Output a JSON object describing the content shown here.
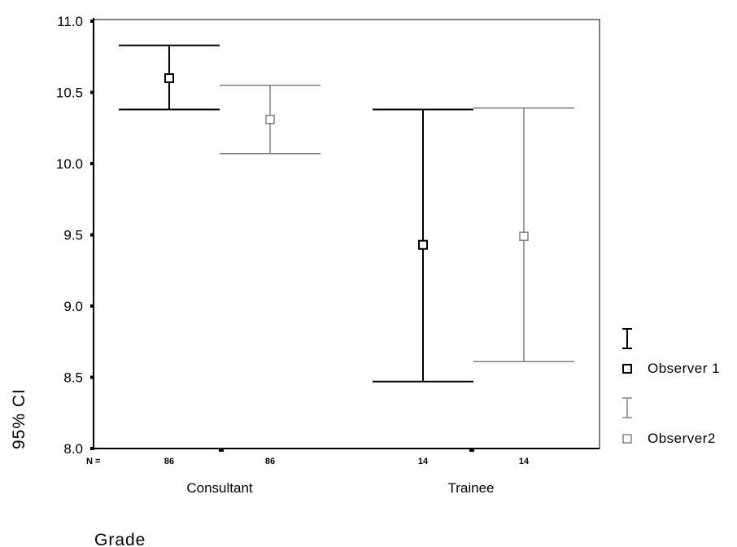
{
  "chart_data": {
    "type": "errorbar",
    "ylabel": "95% CI",
    "xlabel": "Grade",
    "ylim": [
      8.0,
      11.0
    ],
    "yticks": [
      "11.0",
      "10.5",
      "10.0",
      "9.5",
      "9.0",
      "8.5",
      "8.0"
    ],
    "n_prefix": "N =",
    "categories": [
      "Consultant",
      "Trainee"
    ],
    "series": [
      {
        "name": "Observer 1",
        "color": "#000000",
        "n": [
          "86",
          "14"
        ],
        "mean": [
          10.6,
          9.43
        ],
        "lower": [
          10.38,
          8.47
        ],
        "upper": [
          10.83,
          10.38
        ]
      },
      {
        "name": "Observer2",
        "color": "#808080",
        "n": [
          "86",
          "14"
        ],
        "mean": [
          10.31,
          9.49
        ],
        "lower": [
          10.07,
          8.61
        ],
        "upper": [
          10.55,
          10.39
        ]
      }
    ],
    "legend_position": "right"
  }
}
